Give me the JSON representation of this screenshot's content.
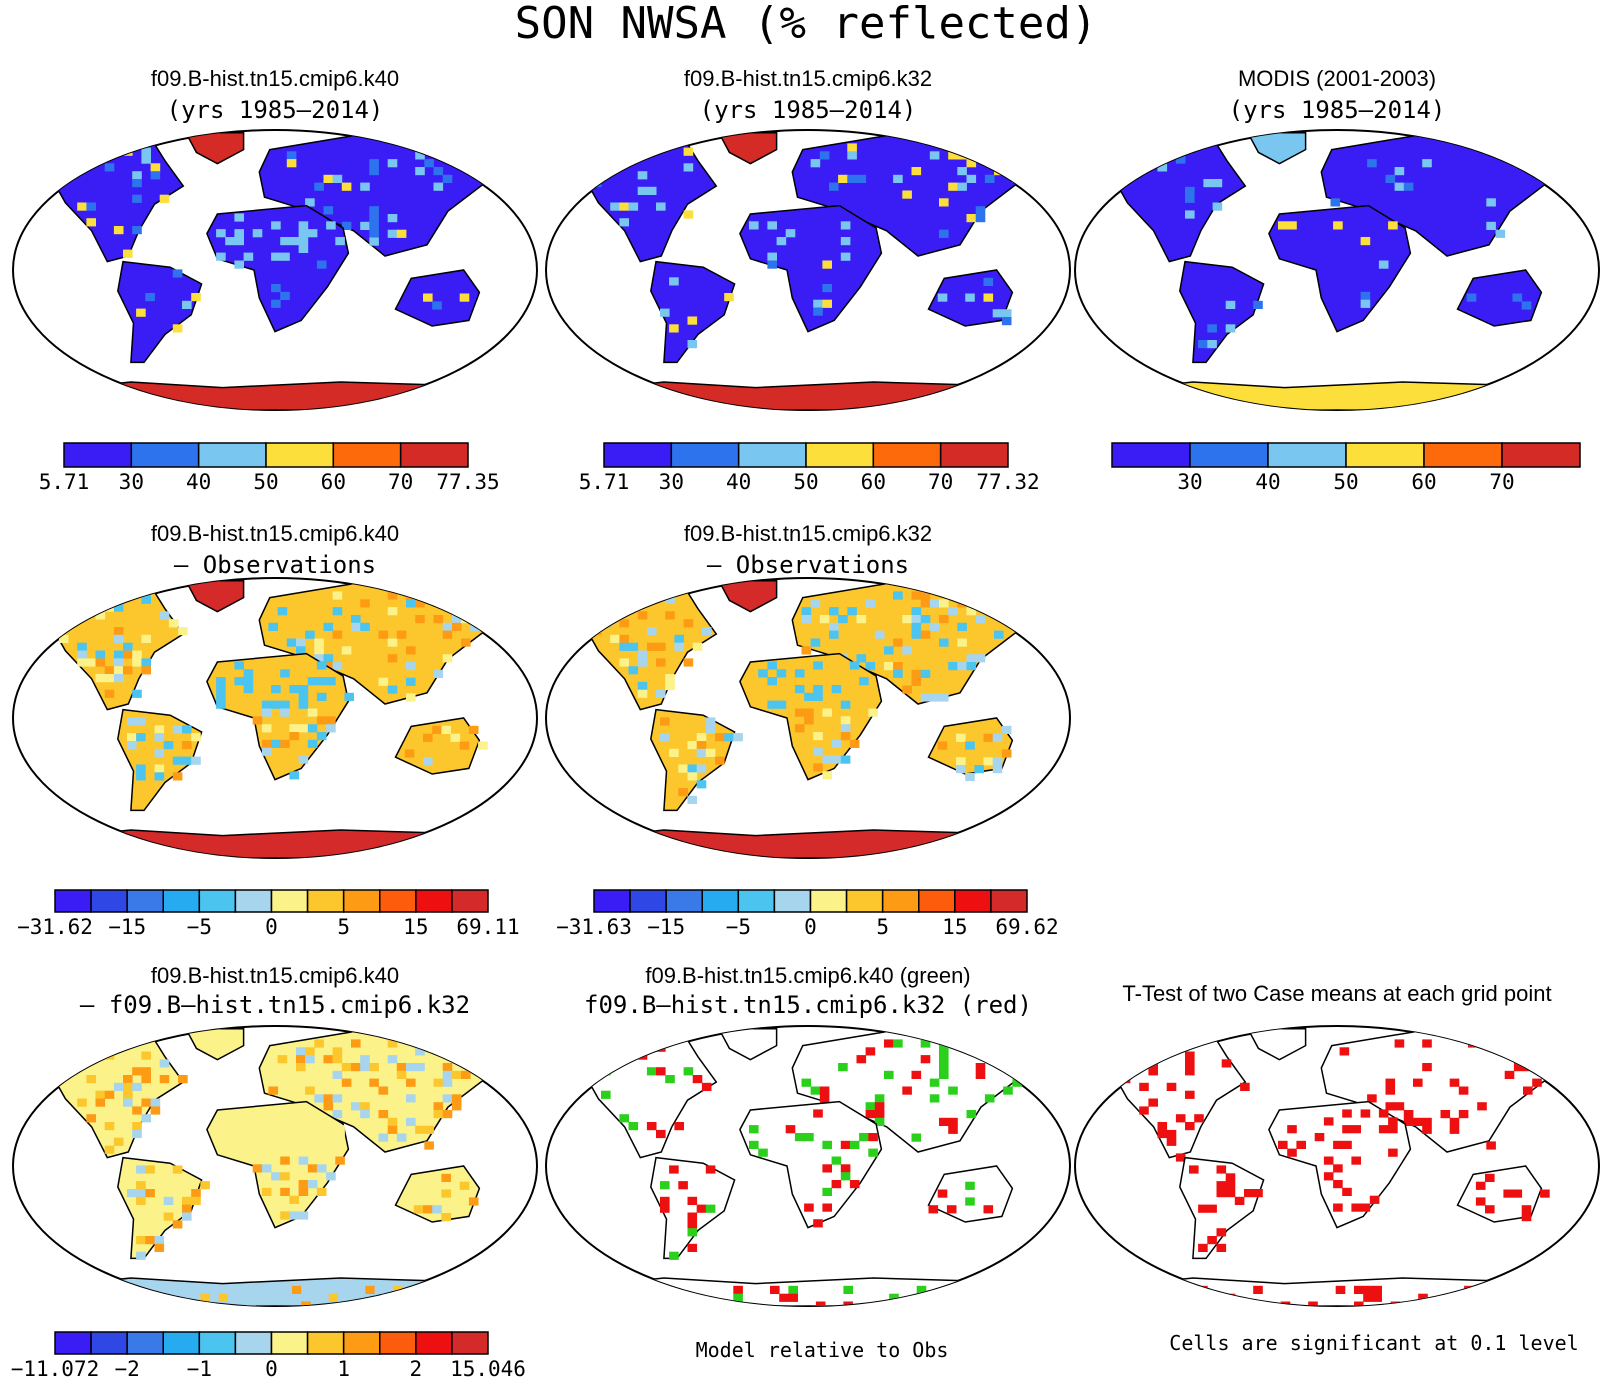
{
  "figure_title": "SON NWSA (% reflected)",
  "panels": [
    {
      "title1": "f09.B-hist.tn15.cmip6.k40",
      "title2": "(yrs 1985—2014)",
      "style": "mean_k40"
    },
    {
      "title1": "f09.B-hist.tn15.cmip6.k32",
      "title2": "(yrs 1985—2014)",
      "style": "mean_k32"
    },
    {
      "title1": "MODIS (2001-2003)",
      "title2": "(yrs 1985—2014)",
      "style": "obs"
    },
    {
      "title1": "f09.B-hist.tn15.cmip6.k40",
      "title2": "— Observations",
      "style": "diff_obs"
    },
    {
      "title1": "f09.B-hist.tn15.cmip6.k32",
      "title2": "— Observations",
      "style": "diff_obs"
    },
    {
      "title1": "f09.B-hist.tn15.cmip6.k40",
      "title2": "— f09.B—hist.tn15.cmip6.k32",
      "style": "diff_case"
    },
    {
      "title1": "f09.B-hist.tn15.cmip6.k40 (green)",
      "title2": "f09.B—hist.tn15.cmip6.k32 (red)",
      "style": "relative"
    },
    {
      "title1": "T-Test of two Case means at each grid point",
      "title2": "",
      "style": "ttest"
    }
  ],
  "colorbars": [
    {
      "colors": [
        "#3a1df5",
        "#2e73ee",
        "#79c6f0",
        "#fddf3c",
        "#fd6a0c",
        "#d52b26"
      ],
      "labels": [
        "5.71",
        "30",
        "40",
        "50",
        "60",
        "70",
        "77.35"
      ],
      "edge_labels": true
    },
    {
      "colors": [
        "#3a1df5",
        "#2e73ee",
        "#79c6f0",
        "#fddf3c",
        "#fd6a0c",
        "#d52b26"
      ],
      "labels": [
        "5.71",
        "30",
        "40",
        "50",
        "60",
        "70",
        "77.32"
      ],
      "edge_labels": true
    },
    {
      "colors": [
        "#3a1df5",
        "#2e73ee",
        "#79c6f0",
        "#fddf3c",
        "#fd6a0c",
        "#d52b26"
      ],
      "labels": [
        "30",
        "40",
        "50",
        "60",
        "70"
      ],
      "edge_labels": false
    },
    {
      "colors": [
        "#3a1df5",
        "#2e47e5",
        "#3a7ae8",
        "#26aaf0",
        "#4cc4f0",
        "#a7d5ee",
        "#fbf28a",
        "#fcc72c",
        "#fd9b15",
        "#fd5c0d",
        "#ee1010",
        "#d42a2a"
      ],
      "labels": [
        "−31.62",
        "−15",
        "−5",
        "0",
        "5",
        "15",
        "69.11"
      ],
      "edge_labels": true
    },
    {
      "colors": [
        "#3a1df5",
        "#2e47e5",
        "#3a7ae8",
        "#26aaf0",
        "#4cc4f0",
        "#a7d5ee",
        "#fbf28a",
        "#fcc72c",
        "#fd9b15",
        "#fd5c0d",
        "#ee1010",
        "#d42a2a"
      ],
      "labels": [
        "−31.63",
        "−15",
        "−5",
        "0",
        "5",
        "15",
        "69.62"
      ],
      "edge_labels": true
    },
    {
      "colors": [
        "#3a1df5",
        "#2e47e5",
        "#3a7ae8",
        "#26aaf0",
        "#4cc4f0",
        "#a7d5ee",
        "#fbf28a",
        "#fcc72c",
        "#fd9b15",
        "#fd5c0d",
        "#ee1010",
        "#d42a2a"
      ],
      "labels": [
        "−11.072",
        "−2",
        "−1",
        "0",
        "1",
        "2",
        "15.046"
      ],
      "edge_labels": true
    }
  ],
  "footnotes": {
    "relative": "Model relative to Obs",
    "ttest": "Cells are significant at 0.1 level"
  },
  "chart_data": {
    "type": "heatmap",
    "title": "SON NWSA (% reflected)",
    "map_projection": "Robinson",
    "colorbar_mean_k40": {
      "min": 5.71,
      "levels": [
        30,
        40,
        50,
        60,
        70
      ],
      "max": 77.35
    },
    "colorbar_mean_k32": {
      "min": 5.71,
      "levels": [
        30,
        40,
        50,
        60,
        70
      ],
      "max": 77.32
    },
    "colorbar_obs": {
      "levels": [
        30,
        40,
        50,
        60,
        70
      ]
    },
    "colorbar_diff_k40_obs": {
      "min": -31.62,
      "labeled_levels": [
        -15,
        -5,
        0,
        5,
        15
      ],
      "max": 69.11
    },
    "colorbar_diff_k32_obs": {
      "min": -31.63,
      "labeled_levels": [
        -15,
        -5,
        0,
        5,
        15
      ],
      "max": 69.62
    },
    "colorbar_diff_k40_k32": {
      "min": -11.072,
      "labeled_levels": [
        -2,
        -1,
        0,
        1,
        2
      ],
      "max": 15.046
    },
    "significance_level": 0.1
  }
}
